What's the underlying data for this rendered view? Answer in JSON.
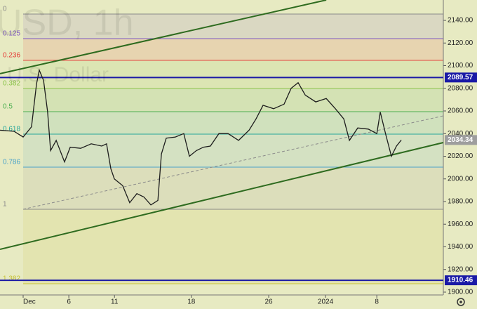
{
  "chart_data": {
    "type": "line",
    "watermark": "USD, 1h",
    "watermark_sub": "U.S. Dollar",
    "color": "#1c1c1c",
    "background": "#e7eac2",
    "x": [
      -1.52,
      -0.6,
      0,
      0.55,
      0.88,
      1.06,
      1.34,
      1.61,
      1.8,
      2.17,
      2.72,
      3.09,
      3.78,
      4.47,
      5.16,
      5.48,
      5.76,
      5.99,
      6.54,
      7.0,
      7.47,
      7.93,
      8.39,
      8.85,
      9.08,
      9.4,
      10.0,
      10.55,
      10.92,
      11.38,
      11.84,
      12.3,
      12.86,
      13.46,
      14.15,
      14.84,
      15.3,
      15.76,
      16.45,
      17.14,
      17.6,
      18.06,
      18.53,
      19.22,
      19.91,
      20.51,
      21.06,
      21.43,
      21.98,
      22.67,
      23.23,
      23.46,
      23.82,
      24.19,
      24.52,
      24.84
    ],
    "values": [
      2043,
      2042,
      2037,
      2046,
      2084,
      2096,
      2087,
      2059,
      2025,
      2034,
      2015,
      2028,
      2027,
      2031,
      2029,
      2031,
      2009,
      2000,
      1994,
      1979,
      1987,
      1984,
      1977,
      1981,
      2022,
      2036,
      2037,
      2040,
      2020,
      2025,
      2028,
      2029,
      2040,
      2040,
      2034,
      2043,
      2053,
      2065,
      2062,
      2066,
      2080,
      2085,
      2074,
      2068,
      2071,
      2062,
      2053,
      2034,
      2045,
      2044,
      2040,
      2059,
      2039,
      2020,
      2029,
      2034.34
    ],
    "xlim": [
      -1.52,
      27.6
    ],
    "ylim": [
      1897.5,
      2158
    ],
    "xticks": [
      {
        "value": 0,
        "label": "Dec"
      },
      {
        "value": 3,
        "label": "6"
      },
      {
        "value": 6,
        "label": "11"
      },
      {
        "value": 11.05,
        "label": "18"
      },
      {
        "value": 16.13,
        "label": "26"
      },
      {
        "value": 19.86,
        "label": "2024"
      },
      {
        "value": 23.23,
        "label": "8"
      }
    ],
    "yticks": [
      {
        "value": 1900,
        "label": "1900.00"
      },
      {
        "value": 1920,
        "label": "1920.00"
      },
      {
        "value": 1940,
        "label": "1940.00"
      },
      {
        "value": 1960,
        "label": "1960.00"
      },
      {
        "value": 1980,
        "label": "1980.00"
      },
      {
        "value": 2000,
        "label": "2000.00"
      },
      {
        "value": 2020,
        "label": "2020.00"
      },
      {
        "value": 2040,
        "label": "2040.00"
      },
      {
        "value": 2060,
        "label": "2060.00"
      },
      {
        "value": 2080,
        "label": "2080.00"
      },
      {
        "value": 2100,
        "label": "2100.00"
      },
      {
        "value": 2120,
        "label": "2120.00"
      },
      {
        "value": 2140,
        "label": "2140.00"
      }
    ],
    "fib_from": 0,
    "fib_levels": [
      {
        "level": 0,
        "value": 2145.6,
        "color": "#8a8a8a"
      },
      {
        "level": 0.125,
        "value": 2123.9,
        "color": "#7e57c2"
      },
      {
        "level": 0.236,
        "value": 2104.7,
        "color": "#e53935"
      },
      {
        "level": 0.382,
        "value": 2079.8,
        "color": "#8bc34a"
      },
      {
        "level": 0.5,
        "value": 2059.4,
        "color": "#4caf50"
      },
      {
        "level": 0.618,
        "value": 2039.5,
        "color": "#26a69a"
      },
      {
        "level": 0.786,
        "value": 2010.4,
        "color": "#4aa3c9"
      },
      {
        "level": 1,
        "value": 1973.2,
        "color": "#8a8a8a"
      },
      {
        "level": 1.382,
        "value": 1907.4,
        "color": "#c6c034"
      }
    ],
    "hlines": [
      {
        "value": 2089.57,
        "color": "#1a1aa6"
      },
      {
        "value": 1910.46,
        "color": "#1a1aa6"
      }
    ],
    "last_price": 2034.34,
    "trendlines": [
      {
        "x": [
          -1.52,
          19.91
        ],
        "y": [
          2092.9,
          2158
        ],
        "color": "#2e6b1f",
        "dash": false
      },
      {
        "x": [
          -1.52,
          27.6
        ],
        "y": [
          1937.8,
          2032.1
        ],
        "color": "#2e6b1f",
        "dash": false
      },
      {
        "x": [
          0,
          27.6
        ],
        "y": [
          1973.2,
          2055.7
        ],
        "color": "#8a8a8a",
        "dash": true
      }
    ]
  }
}
